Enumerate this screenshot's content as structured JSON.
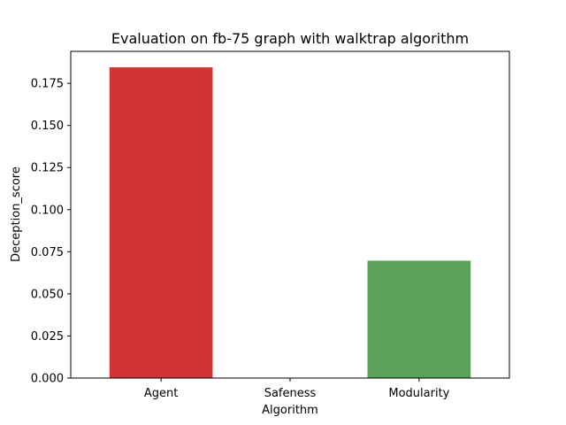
{
  "chart_data": {
    "type": "bar",
    "title": "Evaluation on fb-75 graph with walktrap algorithm",
    "xlabel": "Algorithm",
    "ylabel": "Deception_score",
    "categories": [
      "Agent",
      "Safeness",
      "Modularity"
    ],
    "values": [
      0.1845,
      0.0,
      0.0697
    ],
    "colors": [
      "#d03437",
      "#3a6fb0",
      "#5ba35a"
    ],
    "ylim": [
      0,
      0.194
    ],
    "yticks": [
      0.0,
      0.025,
      0.05,
      0.075,
      0.1,
      0.125,
      0.15,
      0.175
    ],
    "ytick_labels": [
      "0.000",
      "0.025",
      "0.050",
      "0.075",
      "0.100",
      "0.125",
      "0.150",
      "0.175"
    ],
    "grid": false,
    "legend": "none"
  }
}
